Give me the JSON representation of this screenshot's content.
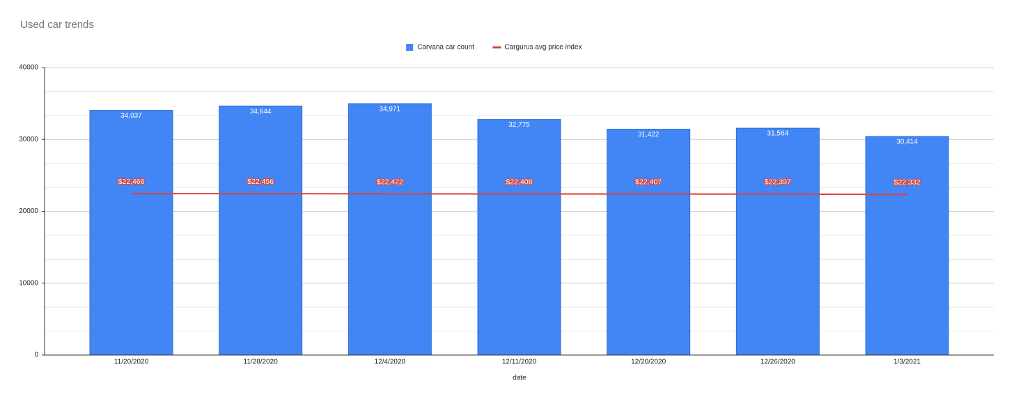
{
  "chart_data": {
    "type": "combo",
    "title": "Used car trends",
    "x_label": "date",
    "categories": [
      "11/20/2020",
      "11/28/2020",
      "12/4/2020",
      "12/11/2020",
      "12/20/2020",
      "12/26/2020",
      "1/3/2021"
    ],
    "series": [
      {
        "name": "Carvana car count",
        "type": "bar",
        "color": "#4285f4",
        "values": [
          34037,
          34644,
          34971,
          32775,
          31422,
          31564,
          30414
        ],
        "value_labels": [
          "34,037",
          "34,644",
          "34,971",
          "32,775",
          "31,422",
          "31,564",
          "30,414"
        ]
      },
      {
        "name": "Cargurus avg price index",
        "type": "line",
        "color": "#db4437",
        "values": [
          22466,
          22456,
          22422,
          22408,
          22407,
          22397,
          22332
        ],
        "value_labels": [
          "$22,466",
          "$22,456",
          "$22,422",
          "$22,408",
          "$22,407",
          "$22,397",
          "$22,332"
        ]
      }
    ],
    "ylim": [
      0,
      40000
    ],
    "yticks": [
      0,
      10000,
      20000,
      30000,
      40000
    ],
    "grid": true,
    "minor_grid_divisions": 3,
    "legend": "top"
  }
}
